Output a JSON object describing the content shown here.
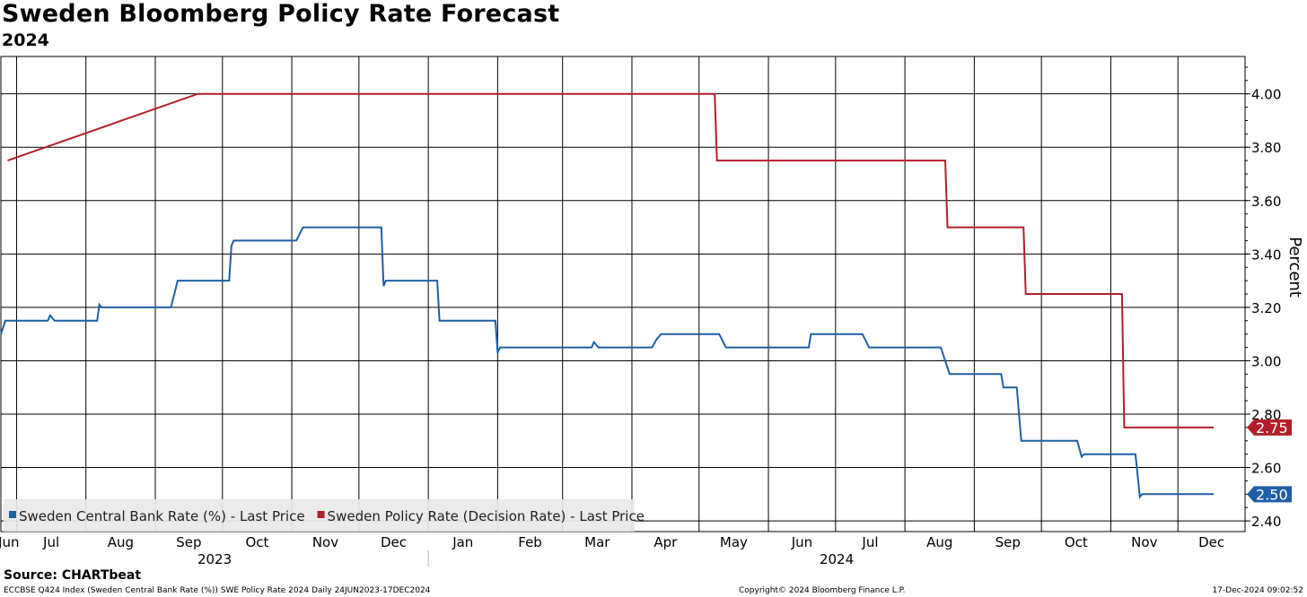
{
  "header": {
    "title": "Sweden Bloomberg Policy Rate Forecast",
    "subtitle": "2024"
  },
  "footer": {
    "source": "Source: CHARTbeat",
    "index_line": "ECCBSE Q424 Index (Sweden Central Bank Rate (%)) SWE Policy Rate 2024  Daily 24JUN2023-17DEC2024",
    "copyright": "Copyright© 2024 Bloomberg Finance L.P.",
    "timestamp": "17-Dec-2024 09:02:52"
  },
  "chart_data": {
    "type": "line",
    "ylabel": "Percent",
    "ylim": [
      2.36,
      4.14
    ],
    "yticks": [
      "2.40",
      "2.60",
      "2.80",
      "3.00",
      "3.20",
      "3.40",
      "3.60",
      "3.80",
      "4.00"
    ],
    "x_range": [
      "2023-06-24",
      "2024-12-17"
    ],
    "xticks": [
      {
        "label": "Jun",
        "date": "2023-06-30"
      },
      {
        "label": "Jul",
        "date": "2023-07-31"
      },
      {
        "label": "Aug",
        "date": "2023-08-31"
      },
      {
        "label": "Sep",
        "date": "2023-09-30"
      },
      {
        "label": "Oct",
        "date": "2023-10-31"
      },
      {
        "label": "Nov",
        "date": "2023-11-30"
      },
      {
        "label": "Dec",
        "date": "2023-12-31"
      },
      {
        "label": "Jan",
        "date": "2024-01-31"
      },
      {
        "label": "Feb",
        "date": "2024-02-29"
      },
      {
        "label": "Mar",
        "date": "2024-03-31"
      },
      {
        "label": "Apr",
        "date": "2024-04-30"
      },
      {
        "label": "May",
        "date": "2024-05-31"
      },
      {
        "label": "Jun",
        "date": "2024-06-30"
      },
      {
        "label": "Jul",
        "date": "2024-07-31"
      },
      {
        "label": "Aug",
        "date": "2024-08-31"
      },
      {
        "label": "Sep",
        "date": "2024-09-30"
      },
      {
        "label": "Oct",
        "date": "2024-10-31"
      },
      {
        "label": "Nov",
        "date": "2024-11-30"
      },
      {
        "label": "Dec",
        "date": "2024-12-31"
      }
    ],
    "year_labels": [
      {
        "label": "2023",
        "date": "2023-09-30"
      },
      {
        "label": "2024",
        "date": "2024-06-30"
      }
    ],
    "year_divider": "2024-01-01",
    "grid": true,
    "legend_position": "bottom-left",
    "series": [
      {
        "name": "Sweden Central Bank Rate (%) - Last Price",
        "color": "#1f5fa6",
        "last_label": "2.50",
        "points": [
          [
            "2023-06-24",
            3.1
          ],
          [
            "2023-06-26",
            3.15
          ],
          [
            "2023-07-15",
            3.15
          ],
          [
            "2023-07-16",
            3.17
          ],
          [
            "2023-07-18",
            3.15
          ],
          [
            "2023-08-06",
            3.15
          ],
          [
            "2023-08-07",
            3.21
          ],
          [
            "2023-08-08",
            3.2
          ],
          [
            "2023-09-08",
            3.2
          ],
          [
            "2023-09-11",
            3.3
          ],
          [
            "2023-10-04",
            3.3
          ],
          [
            "2023-10-05",
            3.43
          ],
          [
            "2023-10-06",
            3.45
          ],
          [
            "2023-11-03",
            3.45
          ],
          [
            "2023-11-06",
            3.5
          ],
          [
            "2023-12-11",
            3.5
          ],
          [
            "2023-12-12",
            3.28
          ],
          [
            "2023-12-13",
            3.3
          ],
          [
            "2024-01-05",
            3.3
          ],
          [
            "2024-01-06",
            3.15
          ],
          [
            "2024-01-31",
            3.15
          ],
          [
            "2024-02-01",
            3.03
          ],
          [
            "2024-02-02",
            3.05
          ],
          [
            "2024-03-14",
            3.05
          ],
          [
            "2024-03-15",
            3.07
          ],
          [
            "2024-03-17",
            3.05
          ],
          [
            "2024-04-10",
            3.05
          ],
          [
            "2024-04-12",
            3.08
          ],
          [
            "2024-04-14",
            3.1
          ],
          [
            "2024-05-10",
            3.1
          ],
          [
            "2024-05-13",
            3.05
          ],
          [
            "2024-06-19",
            3.05
          ],
          [
            "2024-06-20",
            3.1
          ],
          [
            "2024-07-13",
            3.1
          ],
          [
            "2024-07-16",
            3.05
          ],
          [
            "2024-08-17",
            3.05
          ],
          [
            "2024-08-21",
            2.95
          ],
          [
            "2024-09-13",
            2.95
          ],
          [
            "2024-09-14",
            2.9
          ],
          [
            "2024-09-20",
            2.9
          ],
          [
            "2024-09-22",
            2.7
          ],
          [
            "2024-10-17",
            2.7
          ],
          [
            "2024-10-19",
            2.64
          ],
          [
            "2024-10-20",
            2.65
          ],
          [
            "2024-11-12",
            2.65
          ],
          [
            "2024-11-14",
            2.49
          ],
          [
            "2024-11-15",
            2.5
          ],
          [
            "2024-12-17",
            2.5
          ]
        ]
      },
      {
        "name": "Sweden Policy Rate (Decision Rate) - Last Price",
        "color": "#b21f2a",
        "last_label": "2.75",
        "points": [
          [
            "2023-06-27",
            3.75
          ],
          [
            "2023-09-20",
            4.0
          ],
          [
            "2024-05-08",
            4.0
          ],
          [
            "2024-05-09",
            3.75
          ],
          [
            "2024-08-19",
            3.75
          ],
          [
            "2024-08-20",
            3.5
          ],
          [
            "2024-09-23",
            3.5
          ],
          [
            "2024-09-24",
            3.25
          ],
          [
            "2024-11-06",
            3.25
          ],
          [
            "2024-11-07",
            2.75
          ],
          [
            "2024-12-17",
            2.75
          ]
        ]
      }
    ]
  }
}
